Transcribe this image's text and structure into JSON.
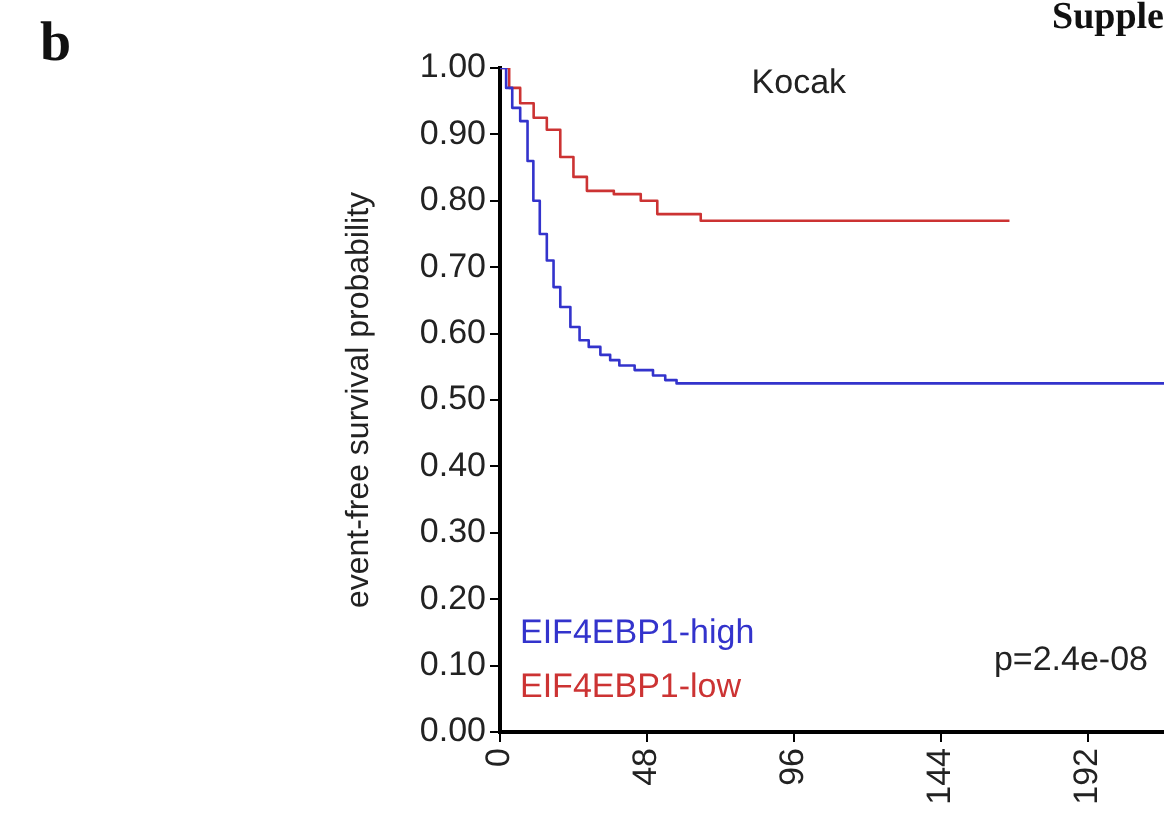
{
  "chart_data": {
    "type": "step",
    "title": "Kocak",
    "ylabel": "event-free survival probability",
    "annotations": [
      "b",
      "Supple",
      "p=2.4e-08"
    ],
    "xlim": [
      0,
      217
    ],
    "xticks": [
      0,
      48,
      96,
      144,
      192
    ],
    "ylim": [
      0,
      1
    ],
    "yticks": [
      {
        "value": 0,
        "label": "0.00"
      },
      {
        "value": 0.1,
        "label": "0.10"
      },
      {
        "value": 0.2,
        "label": "0.20"
      },
      {
        "value": 0.3,
        "label": "0.30"
      },
      {
        "value": 0.4,
        "label": "0.40"
      },
      {
        "value": 0.5,
        "label": "0.50"
      },
      {
        "value": 0.6,
        "label": "0.60"
      },
      {
        "value": 0.7,
        "label": "0.70"
      },
      {
        "value": 0.8,
        "label": "0.80"
      },
      {
        "value": 0.9,
        "label": "0.90"
      },
      {
        "value": 1,
        "label": "1.00"
      }
    ],
    "grid": false,
    "legend": "bottom left",
    "marker": "none",
    "line_style": "solid",
    "series": [
      {
        "name": "EIF4EBP1-high",
        "color": "#3333cc",
        "x": [
          0,
          2,
          4,
          6.6,
          9,
          10.9,
          13,
          15.3,
          17.5,
          19.7,
          23,
          26,
          29,
          32.8,
          36,
          39,
          44,
          50,
          54,
          57.7,
          217
        ],
        "values": [
          1,
          0.97,
          0.94,
          0.92,
          0.86,
          0.8,
          0.75,
          0.71,
          0.67,
          0.64,
          0.61,
          0.59,
          0.58,
          0.568,
          0.56,
          0.552,
          0.545,
          0.537,
          0.53,
          0.525,
          0.525
        ]
      },
      {
        "name": "EIF4EBP1-low",
        "color": "#cc3333",
        "x": [
          0,
          3,
          6.6,
          11,
          15.3,
          19.7,
          24,
          28.4,
          37.2,
          46,
          51.4,
          65.6,
          166.5
        ],
        "values": [
          1,
          0.97,
          0.947,
          0.925,
          0.907,
          0.866,
          0.836,
          0.815,
          0.81,
          0.8,
          0.78,
          0.77,
          0.77
        ]
      }
    ]
  }
}
